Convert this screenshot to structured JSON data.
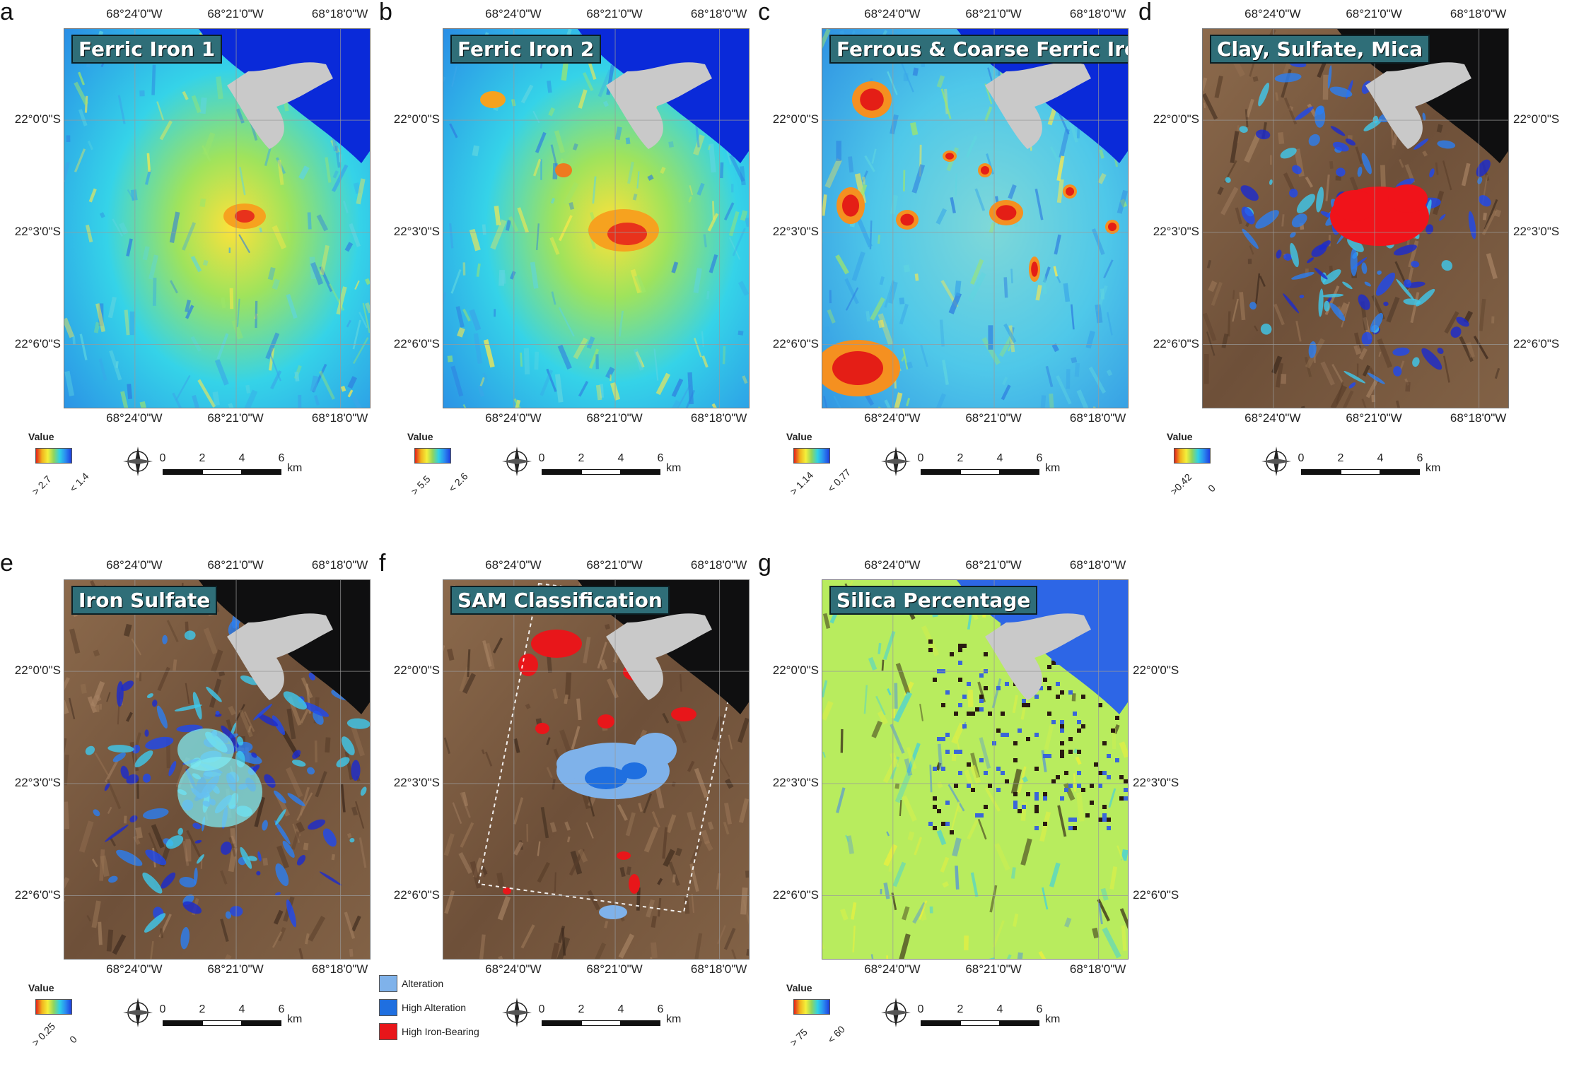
{
  "figure": {
    "panels": [
      {
        "id": "a",
        "letter": "a",
        "title": "Ferric Iron 1",
        "legend_title": "Value",
        "legend_high": "> 2.7",
        "legend_low": "< 1.4",
        "style": "rainbow",
        "right_lat_labels": false
      },
      {
        "id": "b",
        "letter": "b",
        "title": "Ferric Iron 2",
        "legend_title": "Value",
        "legend_high": "> 5.5",
        "legend_low": "< 2.6",
        "style": "rainbow",
        "right_lat_labels": false
      },
      {
        "id": "c",
        "letter": "c",
        "title": "Ferrous & Coarse Ferric Iron",
        "legend_title": "Value",
        "legend_high": "> 1.14",
        "legend_low": "< 0.77",
        "style": "rainbow_hot",
        "right_lat_labels": false
      },
      {
        "id": "d",
        "letter": "d",
        "title": "Clay, Sulfate, Mica",
        "legend_title": "Value",
        "legend_high": ">0.42",
        "legend_low": "0",
        "style": "terrain_overlay",
        "right_lat_labels": true
      },
      {
        "id": "e",
        "letter": "e",
        "title": "Iron Sulfate",
        "legend_title": "Value",
        "legend_high": "> 0.25",
        "legend_low": "0",
        "style": "terrain_blue",
        "right_lat_labels": false
      },
      {
        "id": "f",
        "letter": "f",
        "title": "SAM Classification",
        "legend_title": "",
        "legend_high": "",
        "legend_low": "",
        "style": "terrain_sam",
        "right_lat_labels": false
      },
      {
        "id": "g",
        "letter": "g",
        "title": "Silica Percentage",
        "legend_title": "Value",
        "legend_high": "> 75",
        "legend_low": "< 60",
        "style": "silica",
        "right_lat_labels": true
      }
    ],
    "lon_labels": [
      "68°24'0\"W",
      "68°21'0\"W",
      "68°18'0\"W"
    ],
    "lat_labels": [
      "22°0'0\"S",
      "22°3'0\"S",
      "22°6'0\"S"
    ],
    "scale_labels": [
      "0",
      "2",
      "4",
      "6"
    ],
    "scale_unit": "km",
    "compass_letters": [
      "N",
      "E",
      "S",
      "W"
    ],
    "sam_legend": [
      {
        "label": "Alteration",
        "color": "#7fb2ea"
      },
      {
        "label": "High Alteration",
        "color": "#1f6fe0"
      },
      {
        "label": "High Iron-Bearing",
        "color": "#e8161a"
      }
    ],
    "colors": {
      "ramp_high": "#e2231a",
      "ramp_mid": "#f4f03a",
      "ramp_low": "#1f3fe0",
      "terrain": "#7a5d43",
      "lake": "#0a2ad9",
      "salt_flat": "#c9c9c9"
    }
  }
}
